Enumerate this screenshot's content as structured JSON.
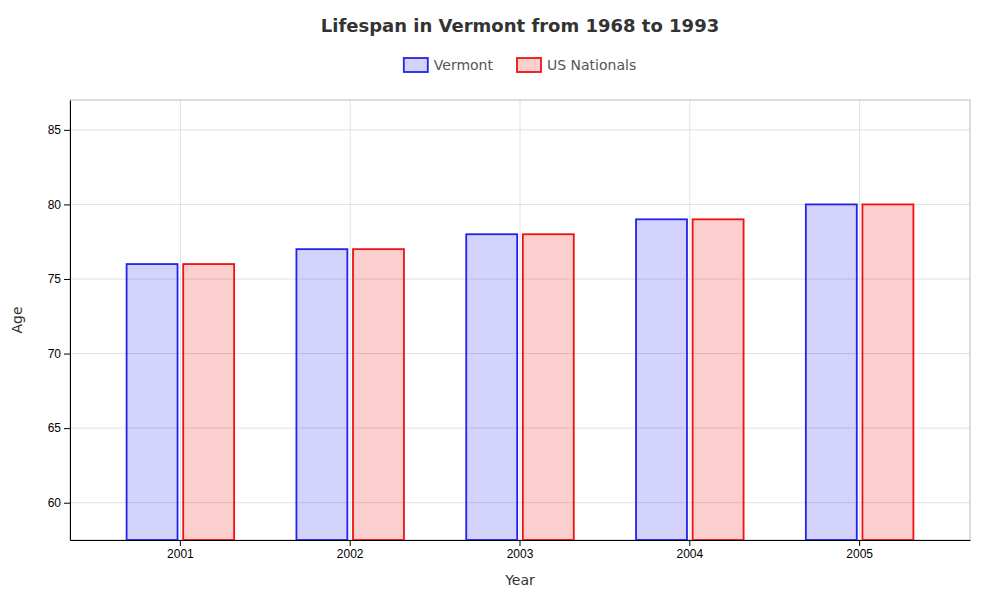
{
  "chart_data": {
    "type": "bar",
    "title": "Lifespan in Vermont from 1968 to 1993",
    "xlabel": "Year",
    "ylabel": "Age",
    "categories": [
      "2001",
      "2002",
      "2003",
      "2004",
      "2005"
    ],
    "series": [
      {
        "name": "Vermont",
        "color": "#2222ee",
        "values": [
          76,
          77,
          78,
          79,
          80
        ]
      },
      {
        "name": "US Nationals",
        "color": "#ee1111",
        "values": [
          76,
          77,
          78,
          79,
          80
        ]
      }
    ],
    "ylim": [
      57.5,
      87
    ],
    "yticks": [
      60,
      65,
      70,
      75,
      80,
      85
    ],
    "grid": true,
    "legend": "top"
  }
}
